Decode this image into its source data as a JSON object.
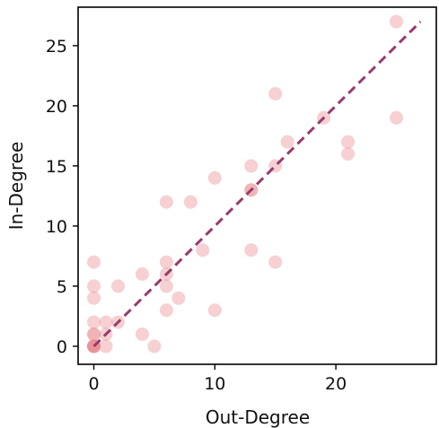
{
  "chart_data": {
    "type": "scatter",
    "title": "",
    "xlabel": "Out-Degree",
    "ylabel": "In-Degree",
    "xlim": [
      -1.3,
      28.3
    ],
    "ylim": [
      -1.5,
      28.2
    ],
    "xticks": [
      0,
      10,
      20
    ],
    "yticks": [
      0,
      5,
      10,
      15,
      20,
      25
    ],
    "grid": false,
    "point_color": "#e8898e",
    "point_opacity": 0.4,
    "line_color": "#983a6e",
    "series": [
      {
        "x": [
          0,
          0,
          0,
          0,
          0,
          0,
          0,
          0,
          0,
          0,
          0,
          1,
          1,
          1,
          2,
          2,
          4,
          4,
          5,
          6,
          6,
          6,
          6,
          6,
          7,
          8,
          9,
          10,
          10,
          13,
          13,
          13,
          13,
          15,
          15,
          15,
          16,
          19,
          21,
          21,
          25,
          25
        ],
        "y": [
          0,
          0,
          0,
          0,
          1,
          1,
          2,
          4,
          5,
          7,
          0,
          0,
          1,
          2,
          2,
          5,
          1,
          6,
          0,
          3,
          5,
          6,
          7,
          12,
          4,
          12,
          8,
          3,
          14,
          8,
          13,
          13,
          15,
          7,
          15,
          21,
          17,
          19,
          16,
          17,
          19,
          27
        ]
      }
    ],
    "reference_line": {
      "x": [
        0,
        27
      ],
      "y": [
        0,
        27
      ]
    }
  }
}
